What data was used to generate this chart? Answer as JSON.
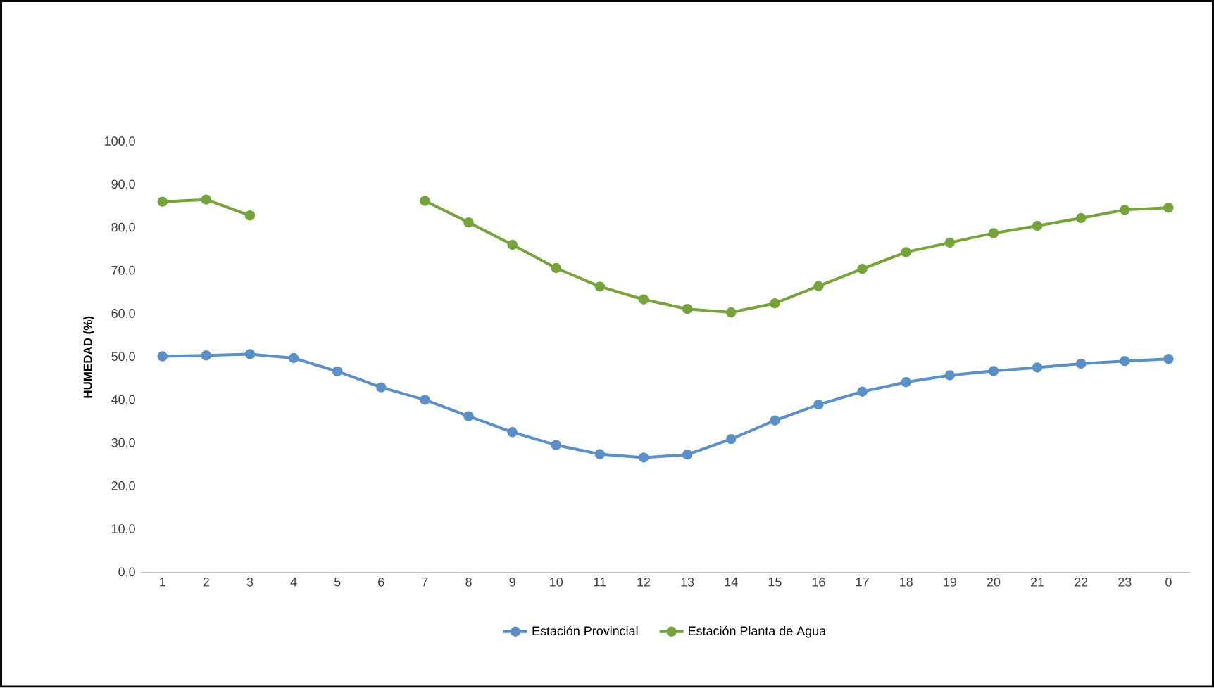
{
  "chart_data": {
    "type": "line",
    "ylabel": "HUMEDAD (%)",
    "categories": [
      "1",
      "2",
      "3",
      "4",
      "5",
      "6",
      "7",
      "8",
      "9",
      "10",
      "11",
      "12",
      "13",
      "14",
      "15",
      "16",
      "17",
      "18",
      "19",
      "20",
      "21",
      "22",
      "23",
      "0"
    ],
    "series": [
      {
        "name": "Estación Provincial",
        "color": "#5b8fc7",
        "values": [
          50.2,
          50.4,
          50.7,
          49.8,
          46.7,
          43.0,
          40.1,
          36.3,
          32.6,
          29.6,
          27.5,
          26.7,
          27.4,
          31.0,
          35.3,
          39.0,
          42.0,
          44.2,
          45.8,
          46.8,
          47.6,
          48.5,
          49.1,
          49.6
        ]
      },
      {
        "name": "Estación Planta de Agua",
        "color": "#77a33c",
        "values": [
          86.1,
          86.6,
          82.9,
          null,
          null,
          null,
          86.3,
          81.3,
          76.1,
          70.7,
          66.4,
          63.4,
          61.2,
          60.4,
          62.5,
          66.5,
          70.5,
          74.4,
          76.6,
          78.8,
          80.5,
          82.3,
          84.2,
          84.7
        ]
      }
    ],
    "ylim": [
      0,
      100
    ],
    "yticks": [
      {
        "value": 0,
        "label": "0,0"
      },
      {
        "value": 10,
        "label": "10,0"
      },
      {
        "value": 20,
        "label": "20,0"
      },
      {
        "value": 30,
        "label": "30,0"
      },
      {
        "value": 40,
        "label": "40,0"
      },
      {
        "value": 50,
        "label": "50,0"
      },
      {
        "value": 60,
        "label": "60,0"
      },
      {
        "value": 70,
        "label": "70,0"
      },
      {
        "value": 80,
        "label": "80,0"
      },
      {
        "value": 90,
        "label": "90,0"
      },
      {
        "value": 100,
        "label": "100,0"
      }
    ],
    "legend": "bottom",
    "marker": "circle",
    "line_style": "solid"
  }
}
